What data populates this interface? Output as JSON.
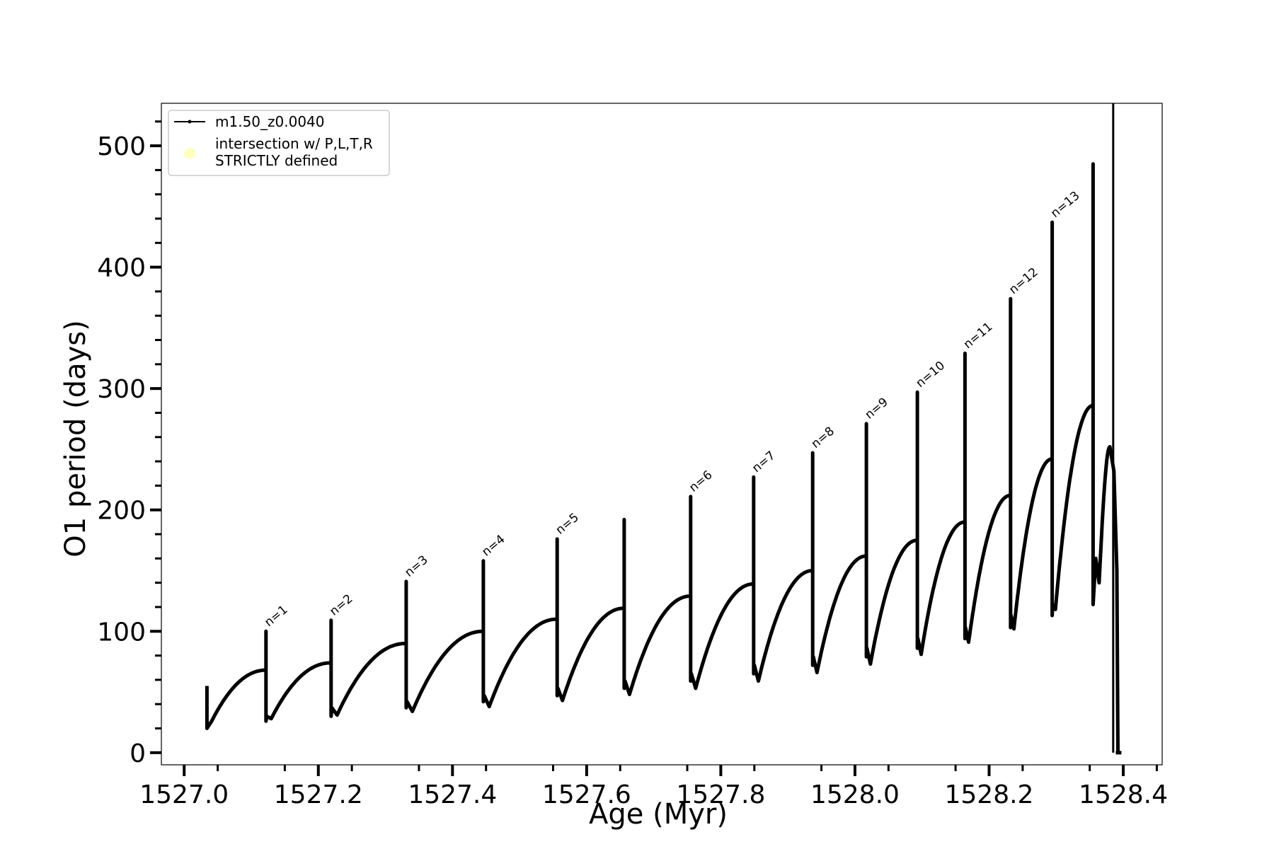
{
  "chart_data": {
    "type": "line",
    "xlabel": "Age (Myr)",
    "ylabel": "O1 period (days)",
    "xlim": [
      1526.966,
      1528.458
    ],
    "ylim": [
      -10,
      535
    ],
    "x_ticks": [
      "1527.0",
      "1527.2",
      "1527.4",
      "1527.6",
      "1527.8",
      "1528.0",
      "1528.2",
      "1528.4"
    ],
    "x_tick_values": [
      1527.0,
      1527.2,
      1527.4,
      1527.6,
      1527.8,
      1528.0,
      1528.2,
      1528.4
    ],
    "y_ticks": [
      "0",
      "100",
      "200",
      "300",
      "400",
      "500"
    ],
    "y_tick_values": [
      0,
      100,
      200,
      300,
      400,
      500
    ],
    "grid": false,
    "legend_position": "top-left",
    "legend": [
      {
        "label": "m1.50_z0.0040",
        "marker": "line-with-dots",
        "color": "#000000"
      },
      {
        "label": "intersection w/ P,L,T,R\nSTRICTLY defined",
        "marker": "circle",
        "color": "#ffffc0"
      }
    ],
    "series_name": "m1.50_z0.0040",
    "start": {
      "x": 1527.034,
      "y_high": 55,
      "y_low": 20
    },
    "cycles": [
      {
        "xs": 1527.034,
        "xp": 1527.122,
        "ymin": 26,
        "ypeak": 68,
        "spike": 100,
        "flash_low": 26
      },
      {
        "xs": 1527.122,
        "xp": 1527.219,
        "ymin": 28,
        "ypeak": 74,
        "spike": 109,
        "flash_low": 30
      },
      {
        "xs": 1527.219,
        "xp": 1527.331,
        "ymin": 31,
        "ypeak": 90,
        "spike": 141,
        "flash_low": 37
      },
      {
        "xs": 1527.331,
        "xp": 1527.446,
        "ymin": 34,
        "ypeak": 100,
        "spike": 158,
        "flash_low": 42
      },
      {
        "xs": 1527.446,
        "xp": 1527.556,
        "ymin": 38,
        "ypeak": 110,
        "spike": 176,
        "flash_low": 47
      },
      {
        "xs": 1527.556,
        "xp": 1527.656,
        "ymin": 43,
        "ypeak": 119,
        "spike": 192,
        "flash_low": 53
      },
      {
        "xs": 1527.656,
        "xp": 1527.755,
        "ymin": 48,
        "ypeak": 129,
        "spike": 211,
        "flash_low": 59
      },
      {
        "xs": 1527.755,
        "xp": 1527.849,
        "ymin": 53,
        "ypeak": 139,
        "spike": 227,
        "flash_low": 65
      },
      {
        "xs": 1527.849,
        "xp": 1527.937,
        "ymin": 59,
        "ypeak": 150,
        "spike": 247,
        "flash_low": 72
      },
      {
        "xs": 1527.937,
        "xp": 1528.017,
        "ymin": 66,
        "ypeak": 162,
        "spike": 271,
        "flash_low": 79
      },
      {
        "xs": 1528.017,
        "xp": 1528.093,
        "ymin": 73,
        "ypeak": 175,
        "spike": 297,
        "flash_low": 86
      },
      {
        "xs": 1528.093,
        "xp": 1528.164,
        "ymin": 81,
        "ypeak": 190,
        "spike": 329,
        "flash_low": 94
      },
      {
        "xs": 1528.164,
        "xp": 1528.232,
        "ymin": 91,
        "ypeak": 212,
        "spike": 374,
        "flash_low": 103
      },
      {
        "xs": 1528.232,
        "xp": 1528.294,
        "ymin": 102,
        "ypeak": 242,
        "spike": 437,
        "flash_low": 113
      },
      {
        "xs": 1528.294,
        "xp": 1528.355,
        "ymin": 118,
        "ypeak": 286,
        "spike": 485,
        "flash_low": 122
      }
    ],
    "final": {
      "x_min": 1528.364,
      "y_min": 140,
      "x_peak": 1528.38,
      "y_peak": 252,
      "x_end": 1528.392,
      "y_end": 0,
      "vline_x": 1528.385
    },
    "annotations": [
      {
        "text": "n=1",
        "x": 1527.122,
        "y": 100
      },
      {
        "text": "n=2",
        "x": 1527.219,
        "y": 109
      },
      {
        "text": "n=3",
        "x": 1527.331,
        "y": 141
      },
      {
        "text": "n=4",
        "x": 1527.446,
        "y": 158
      },
      {
        "text": "n=5",
        "x": 1527.556,
        "y": 176
      },
      {
        "text": "n=6",
        "x": 1527.755,
        "y": 211
      },
      {
        "text": "n=7",
        "x": 1527.849,
        "y": 227
      },
      {
        "text": "n=8",
        "x": 1527.937,
        "y": 247
      },
      {
        "text": "n=9",
        "x": 1528.017,
        "y": 271
      },
      {
        "text": "n=10",
        "x": 1528.093,
        "y": 297
      },
      {
        "text": "n=11",
        "x": 1528.164,
        "y": 329
      },
      {
        "text": "n=12",
        "x": 1528.232,
        "y": 374
      },
      {
        "text": "n=13",
        "x": 1528.294,
        "y": 437
      }
    ]
  }
}
